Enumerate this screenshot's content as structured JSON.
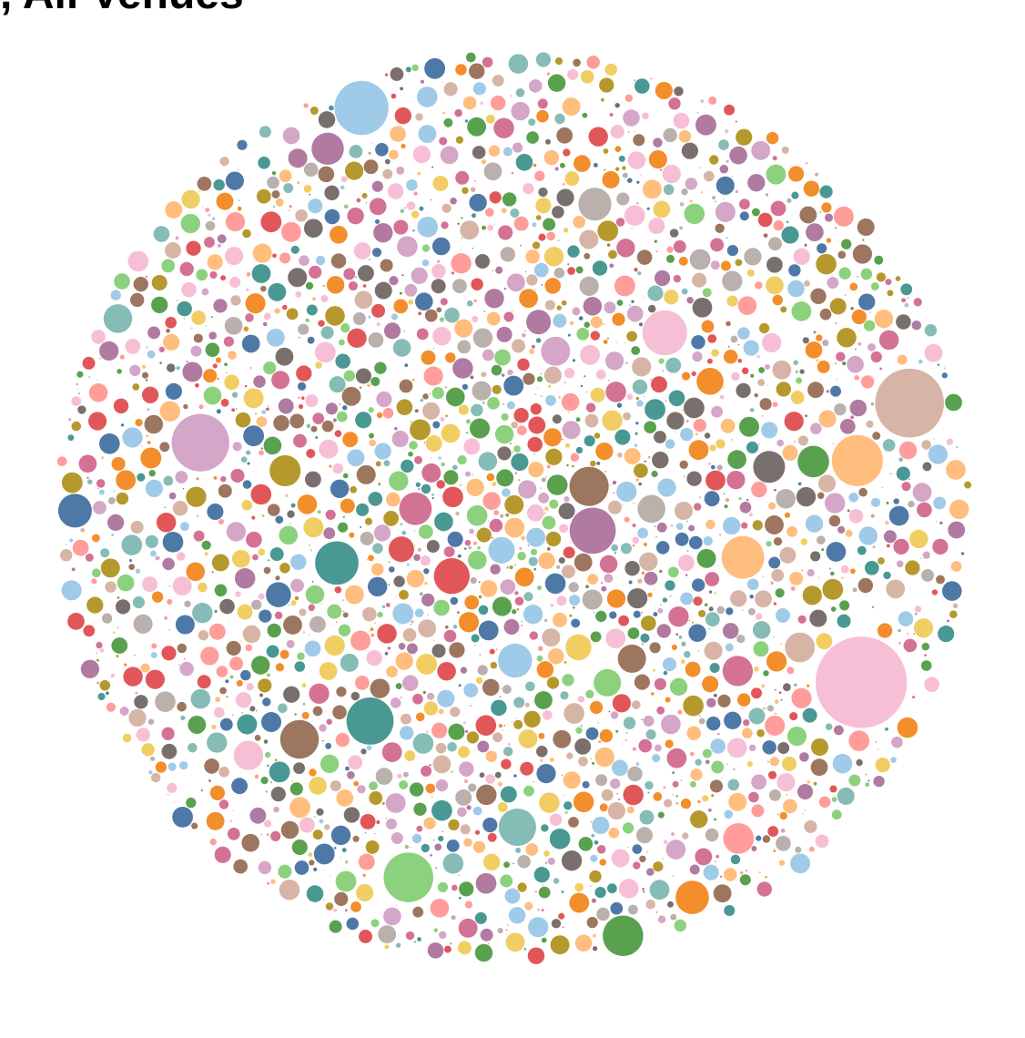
{
  "chart_data": {
    "type": "bubble",
    "title": ", All Venues",
    "xlabel": "",
    "ylabel": "",
    "legend": "none",
    "grid": false,
    "palette": {
      "pink_light": "#f7bfd5",
      "mauve": "#d4a6c8",
      "green": "#59a14f",
      "green_light": "#8cd17d",
      "orange_light": "#ffbe7d",
      "orange": "#f28e2b",
      "blue_light": "#a0cbe8",
      "blue": "#4e79a7",
      "brown": "#9d7660",
      "tan": "#d7b5a6",
      "teal": "#499894",
      "teal_light": "#86bcb6",
      "purple": "#b07aa1",
      "rose": "#d37295",
      "red": "#e15759",
      "salmon": "#ff9d9a",
      "gray": "#79706e",
      "gray_light": "#bab0ac",
      "olive": "#b6992d",
      "yellow": "#f1ce63"
    },
    "bubbles": [
      {
        "value": 34500,
        "color": "pink_light"
      },
      {
        "value": 19600,
        "color": "tan"
      },
      {
        "value": 13700,
        "color": "mauve"
      },
      {
        "value": 12100,
        "color": "blue_light"
      },
      {
        "value": 10800,
        "color": "orange_light"
      },
      {
        "value": 10200,
        "color": "green_light"
      },
      {
        "value": 9200,
        "color": "teal"
      },
      {
        "value": 8800,
        "color": "purple"
      },
      {
        "value": 8300,
        "color": "pink_light"
      },
      {
        "value": 7800,
        "color": "teal"
      },
      {
        "value": 7500,
        "color": "orange_light"
      },
      {
        "value": 6800,
        "color": "green"
      },
      {
        "value": 6400,
        "color": "brown"
      },
      {
        "value": 6200,
        "color": "brown"
      },
      {
        "value": 5800,
        "color": "teal_light"
      },
      {
        "value": 5300,
        "color": "red"
      },
      {
        "value": 4800,
        "color": "blue_light"
      },
      {
        "value": 4700,
        "color": "blue"
      },
      {
        "value": 4600,
        "color": "orange"
      },
      {
        "value": 4500,
        "color": "gray_light"
      },
      {
        "value": 4400,
        "color": "rose"
      },
      {
        "value": 4300,
        "color": "purple"
      },
      {
        "value": 4200,
        "color": "gray"
      },
      {
        "value": 4100,
        "color": "green"
      },
      {
        "value": 4000,
        "color": "olive"
      },
      {
        "value": 3900,
        "color": "salmon"
      },
      {
        "value": 3800,
        "color": "rose"
      },
      {
        "value": 3700,
        "color": "tan"
      },
      {
        "value": 3600,
        "color": "pink_light"
      },
      {
        "value": 3500,
        "color": "mauve"
      },
      {
        "value": 3400,
        "color": "teal_light"
      },
      {
        "value": 3300,
        "color": "brown"
      },
      {
        "value": 3200,
        "color": "gray_light"
      },
      {
        "value": 3100,
        "color": "green_light"
      },
      {
        "value": 3000,
        "color": "orange"
      },
      {
        "value": 2900,
        "color": "blue_light"
      },
      {
        "value": 2800,
        "color": "yellow"
      },
      {
        "value": 2700,
        "color": "red"
      },
      {
        "value": 2600,
        "color": "blue"
      },
      {
        "value": 2500,
        "color": "purple"
      }
    ],
    "small_bubble_count": 2300,
    "small_bubble_value_range": [
      6,
      1800
    ]
  }
}
